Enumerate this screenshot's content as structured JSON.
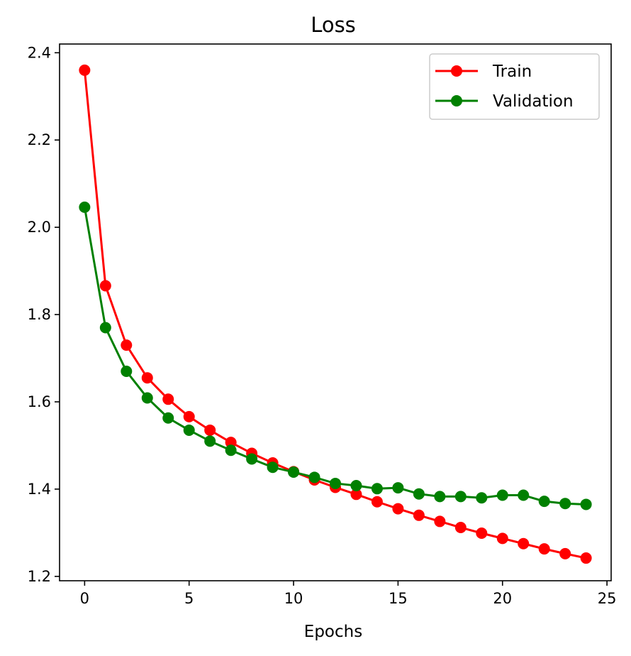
{
  "chart_data": {
    "type": "line",
    "title": "Loss",
    "xlabel": "Epochs",
    "ylabel": "",
    "xlim": [
      -1.2,
      25.2
    ],
    "ylim": [
      1.19,
      2.42
    ],
    "xticks": [
      0,
      5,
      10,
      15,
      20,
      25
    ],
    "yticks": [
      1.2,
      1.4,
      1.6,
      1.8,
      2.0,
      2.2,
      2.4
    ],
    "ytick_labels": [
      "1.2",
      "1.4",
      "1.6",
      "1.8",
      "2.0",
      "2.2",
      "2.4"
    ],
    "grid": false,
    "legend_position": "top-right",
    "x": [
      0,
      1,
      2,
      3,
      4,
      5,
      6,
      7,
      8,
      9,
      10,
      11,
      12,
      13,
      14,
      15,
      16,
      17,
      18,
      19,
      20,
      21,
      22,
      23,
      24
    ],
    "series": [
      {
        "name": "Train",
        "color": "#ff0000",
        "marker": "circle",
        "values": [
          2.36,
          1.866,
          1.73,
          1.655,
          1.606,
          1.566,
          1.535,
          1.507,
          1.482,
          1.46,
          1.44,
          1.421,
          1.404,
          1.388,
          1.371,
          1.355,
          1.34,
          1.326,
          1.312,
          1.299,
          1.287,
          1.275,
          1.263,
          1.252,
          1.242
        ]
      },
      {
        "name": "Validation",
        "color": "#008000",
        "marker": "circle",
        "values": [
          2.046,
          1.77,
          1.67,
          1.609,
          1.563,
          1.535,
          1.51,
          1.489,
          1.469,
          1.45,
          1.439,
          1.427,
          1.413,
          1.408,
          1.401,
          1.403,
          1.389,
          1.383,
          1.383,
          1.38,
          1.386,
          1.386,
          1.372,
          1.367,
          1.365
        ]
      }
    ]
  }
}
